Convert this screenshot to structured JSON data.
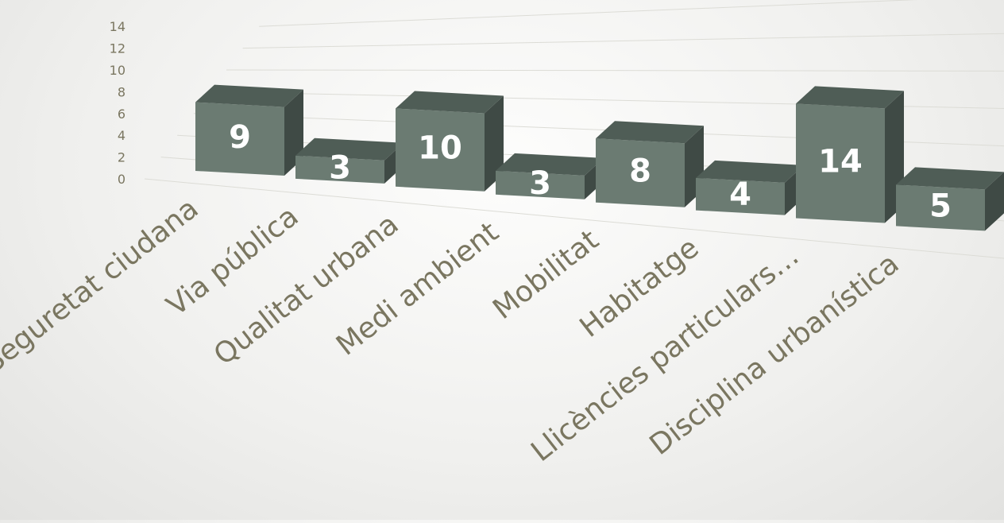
{
  "chart_data": {
    "type": "bar",
    "title": "",
    "xlabel": "",
    "ylabel": "",
    "ylim": [
      0,
      14
    ],
    "yticks": [
      0,
      2,
      4,
      6,
      8,
      10,
      12,
      14
    ],
    "grid": true,
    "legend": "none",
    "style": "3d-columns",
    "categories": [
      "Seguretat ciudana",
      "Via pública",
      "Qualitat urbana",
      "Medi ambient",
      "Mobilitat",
      "Habitatge",
      "Llicències particulars…",
      "Disciplina urbanística"
    ],
    "values": [
      9,
      3,
      10,
      3,
      8,
      4,
      14,
      5
    ],
    "colors": {
      "bar_front": "#6b7b72",
      "bar_top": "#4f5d56",
      "bar_side": "#3f4a45",
      "data_label": "#ffffff",
      "axis_text": "#7a7660",
      "grid": "#dcdcd6"
    }
  }
}
